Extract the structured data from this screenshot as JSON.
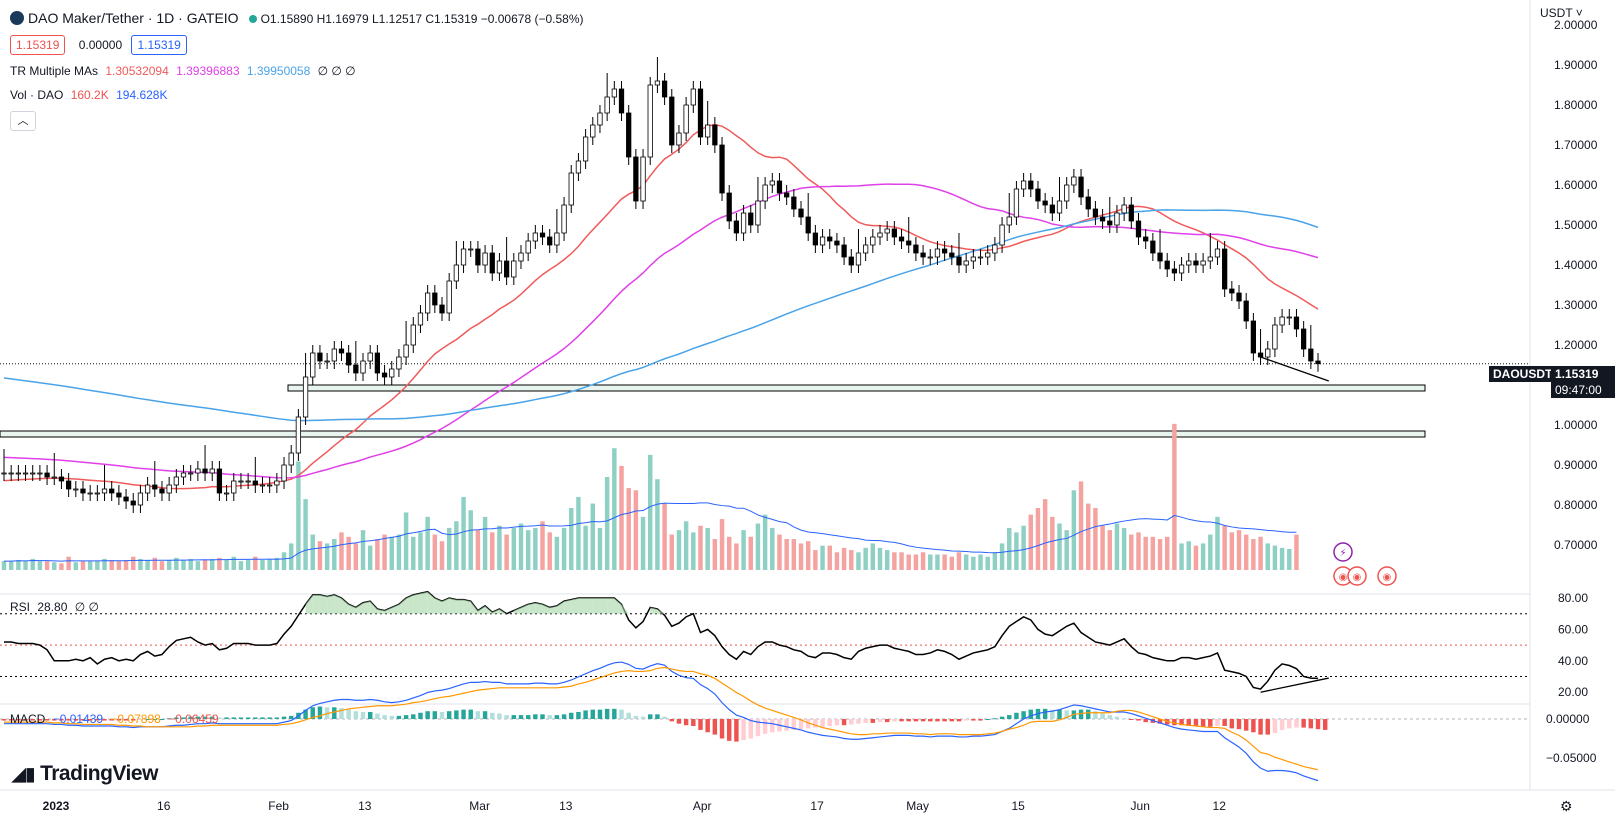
{
  "header": {
    "symbol_title": "DAO Maker/Tether · 1D · GATEIO",
    "ohlc": "O1.15890 H1.16979 L1.12517 C1.15319 −0.00678 (−0.58%)",
    "bid": "1.15319",
    "spread": "0.00000",
    "ask": "1.15319",
    "currency": "USDT",
    "collapse_icon": "chevron-up-icon"
  },
  "indicators": {
    "ma_label": "TR Multiple MAs",
    "ma_values": [
      "1.30532094",
      "1.39396883",
      "1.39950058"
    ],
    "ma_extra": "∅ ∅ ∅",
    "vol_label": "Vol · DAO",
    "vol_values": [
      "160.2K",
      "194.628K"
    ],
    "rsi_label": "RSI",
    "rsi_value": "28.80",
    "rsi_extra": "∅ ∅",
    "macd_label": "MACD",
    "macd_values": [
      "−0.01439",
      "−0.07898",
      "−0.06459"
    ]
  },
  "price_axis": {
    "ticks": [
      "2.00000",
      "1.90000",
      "1.80000",
      "1.70000",
      "1.60000",
      "1.50000",
      "1.40000",
      "1.30000",
      "1.20000",
      "1.10000",
      "1.00000",
      "0.90000",
      "0.80000",
      "0.70000"
    ],
    "current_symbol": "DAOUSDT",
    "current_price": "1.15319",
    "countdown": "09:47:00"
  },
  "rsi_axis": {
    "ticks": [
      "80.00",
      "60.00",
      "40.00",
      "20.00"
    ]
  },
  "macd_axis": {
    "ticks": [
      "0.00000",
      "−0.05000"
    ]
  },
  "time_axis": {
    "ticks": [
      "2023",
      "16",
      "Feb",
      "13",
      "Mar",
      "13",
      "Apr",
      "17",
      "May",
      "15",
      "Jun",
      "12"
    ]
  },
  "branding": {
    "logo_text": "TradingView",
    "settings_icon": "gear-icon"
  },
  "colors": {
    "up": "#ffffff",
    "down": "#000000",
    "ma_red": "#f05a5a",
    "ma_pink": "#e040e8",
    "ma_blue": "#4aa3e8",
    "vol_up": "#8fd0c4",
    "vol_down": "#f4a3a0",
    "rsi_line": "#000000",
    "macd_line": "#2962ff",
    "signal_line": "#ff9800",
    "hist_pos": "#26a69a",
    "hist_neg": "#ef5350"
  },
  "chart_data": [
    {
      "type": "candlestick",
      "title": "DAO Maker/Tether · 1D · GATEIO",
      "x_start": "2023-01-01",
      "ylim": [
        0.65,
        2.0
      ],
      "close": [
        0.88,
        0.88,
        0.88,
        0.88,
        0.88,
        0.88,
        0.87,
        0.87,
        0.86,
        0.84,
        0.84,
        0.83,
        0.83,
        0.83,
        0.84,
        0.83,
        0.82,
        0.81,
        0.8,
        0.83,
        0.85,
        0.84,
        0.83,
        0.85,
        0.87,
        0.88,
        0.88,
        0.89,
        0.88,
        0.89,
        0.83,
        0.83,
        0.86,
        0.86,
        0.86,
        0.85,
        0.85,
        0.85,
        0.86,
        0.9,
        0.93,
        1.02,
        1.12,
        1.18,
        1.16,
        1.16,
        1.19,
        1.18,
        1.15,
        1.13,
        1.16,
        1.18,
        1.13,
        1.12,
        1.14,
        1.17,
        1.2,
        1.25,
        1.28,
        1.33,
        1.3,
        1.28,
        1.36,
        1.4,
        1.44,
        1.44,
        1.4,
        1.43,
        1.38,
        1.41,
        1.37,
        1.41,
        1.43,
        1.46,
        1.48,
        1.47,
        1.45,
        1.48,
        1.55,
        1.63,
        1.66,
        1.72,
        1.75,
        1.78,
        1.82,
        1.84,
        1.78,
        1.67,
        1.56,
        1.67,
        1.85,
        1.86,
        1.82,
        1.7,
        1.73,
        1.8,
        1.84,
        1.72,
        1.75,
        1.7,
        1.58,
        1.51,
        1.48,
        1.53,
        1.5,
        1.56,
        1.6,
        1.61,
        1.58,
        1.57,
        1.54,
        1.52,
        1.48,
        1.45,
        1.47,
        1.46,
        1.45,
        1.42,
        1.4,
        1.43,
        1.45,
        1.47,
        1.48,
        1.49,
        1.47,
        1.46,
        1.45,
        1.43,
        1.42,
        1.42,
        1.44,
        1.43,
        1.42,
        1.4,
        1.41,
        1.42,
        1.42,
        1.43,
        1.45,
        1.5,
        1.52,
        1.59,
        1.61,
        1.59,
        1.56,
        1.55,
        1.53,
        1.56,
        1.6,
        1.62,
        1.57,
        1.54,
        1.52,
        1.51,
        1.5,
        1.53,
        1.55,
        1.51,
        1.47,
        1.46,
        1.43,
        1.41,
        1.39,
        1.38,
        1.4,
        1.41,
        1.4,
        1.41,
        1.42,
        1.44,
        1.34,
        1.33,
        1.31,
        1.26,
        1.18,
        1.17,
        1.19,
        1.25,
        1.27,
        1.27,
        1.24,
        1.19,
        1.16,
        1.15319
      ]
    },
    {
      "type": "line",
      "name": "TR Multiple MAs",
      "series": [
        {
          "name": "MA 1.30532094",
          "color": "#f05a5a"
        },
        {
          "name": "MA 1.39396883",
          "color": "#e040e8"
        },
        {
          "name": "MA 1.39950058",
          "color": "#4aa3e8"
        }
      ]
    },
    {
      "type": "bar",
      "name": "Vol · DAO",
      "values_k": [
        40,
        40,
        45,
        40,
        50,
        40,
        40,
        35,
        30,
        60,
        35,
        40,
        40,
        40,
        50,
        45,
        40,
        45,
        60,
        50,
        45,
        55,
        40,
        45,
        55,
        45,
        50,
        40,
        45,
        50,
        55,
        45,
        60,
        40,
        45,
        60,
        45,
        50,
        55,
        80,
        120,
        490,
        320,
        160,
        130,
        120,
        140,
        170,
        150,
        120,
        180,
        110,
        140,
        160,
        150,
        160,
        260,
        150,
        170,
        240,
        160,
        130,
        190,
        220,
        330,
        270,
        180,
        240,
        170,
        200,
        160,
        190,
        210,
        180,
        190,
        220,
        170,
        150,
        190,
        280,
        330,
        200,
        300,
        190,
        420,
        550,
        470,
        370,
        360,
        240,
        520,
        410,
        300,
        160,
        180,
        220,
        170,
        200,
        190,
        140,
        230,
        150,
        120,
        180,
        150,
        210,
        250,
        190,
        160,
        140,
        140,
        120,
        130,
        90,
        110,
        110,
        80,
        100,
        90,
        80,
        100,
        120,
        100,
        90,
        80,
        80,
        70,
        70,
        80,
        70,
        70,
        70,
        60,
        80,
        70,
        60,
        70,
        60,
        80,
        120,
        190,
        170,
        200,
        250,
        280,
        320,
        240,
        210,
        180,
        360,
        400,
        300,
        280,
        200,
        180,
        210,
        190,
        160,
        170,
        150,
        150,
        140,
        150,
        660,
        120,
        130,
        110,
        120,
        160,
        240,
        200,
        170,
        180,
        160,
        140,
        150,
        120,
        110,
        100,
        95,
        160
      ]
    },
    {
      "type": "line",
      "name": "RSI",
      "ylim": [
        15,
        85
      ],
      "values": [
        52,
        52,
        51,
        51,
        51,
        50,
        47,
        40,
        40,
        40,
        41,
        40,
        42,
        38,
        41,
        42,
        40,
        41,
        40,
        44,
        46,
        43,
        44,
        49,
        53,
        54,
        55,
        52,
        50,
        51,
        47,
        48,
        51,
        51,
        51,
        50,
        50,
        50,
        51,
        57,
        62,
        69,
        76,
        82,
        82,
        81,
        82,
        80,
        76,
        74,
        77,
        78,
        73,
        72,
        74,
        76,
        80,
        82,
        83,
        84,
        80,
        78,
        80,
        79,
        79,
        78,
        72,
        75,
        71,
        73,
        70,
        72,
        74,
        76,
        77,
        76,
        74,
        75,
        78,
        79,
        80,
        80,
        80,
        80,
        80,
        80,
        76,
        66,
        61,
        65,
        74,
        73,
        69,
        62,
        64,
        68,
        70,
        58,
        60,
        56,
        49,
        44,
        41,
        46,
        44,
        49,
        52,
        52,
        50,
        49,
        47,
        46,
        43,
        42,
        45,
        45,
        44,
        42,
        41,
        46,
        48,
        49,
        50,
        50,
        48,
        47,
        46,
        44,
        44,
        45,
        47,
        46,
        44,
        41,
        43,
        45,
        46,
        47,
        49,
        56,
        62,
        65,
        68,
        66,
        60,
        57,
        56,
        59,
        62,
        64,
        58,
        55,
        52,
        51,
        50,
        52,
        54,
        49,
        45,
        44,
        42,
        41,
        40,
        40,
        42,
        42,
        41,
        42,
        43,
        45,
        34,
        33,
        32,
        30,
        23,
        22,
        27,
        34,
        38,
        37,
        35,
        30,
        29,
        28.8
      ]
    },
    {
      "type": "bar",
      "name": "MACD",
      "ylim": [
        -0.08,
        0.02
      ],
      "histogram": [
        -0.002,
        -0.002,
        -0.002,
        -0.002,
        -0.002,
        -0.002,
        -0.002,
        -0.002,
        -0.002,
        -0.002,
        -0.002,
        -0.002,
        -0.002,
        -0.002,
        -0.002,
        -0.002,
        -0.002,
        -0.002,
        -0.002,
        -0.001,
        0.0,
        0.0,
        0.0,
        0.001,
        0.002,
        0.002,
        0.003,
        0.003,
        0.003,
        0.003,
        0.002,
        0.002,
        0.002,
        0.002,
        0.002,
        0.002,
        0.002,
        0.002,
        0.002,
        0.003,
        0.004,
        0.008,
        0.012,
        0.015,
        0.016,
        0.015,
        0.015,
        0.014,
        0.012,
        0.01,
        0.009,
        0.009,
        0.007,
        0.005,
        0.004,
        0.004,
        0.005,
        0.006,
        0.008,
        0.01,
        0.01,
        0.009,
        0.01,
        0.011,
        0.012,
        0.012,
        0.01,
        0.01,
        0.008,
        0.007,
        0.005,
        0.005,
        0.005,
        0.005,
        0.006,
        0.006,
        0.005,
        0.005,
        0.006,
        0.008,
        0.009,
        0.011,
        0.012,
        0.012,
        0.013,
        0.013,
        0.012,
        0.008,
        0.004,
        0.003,
        0.006,
        0.006,
        0.003,
        -0.003,
        -0.006,
        -0.008,
        -0.009,
        -0.014,
        -0.017,
        -0.02,
        -0.025,
        -0.028,
        -0.029,
        -0.027,
        -0.025,
        -0.022,
        -0.019,
        -0.017,
        -0.016,
        -0.015,
        -0.014,
        -0.013,
        -0.012,
        -0.011,
        -0.01,
        -0.009,
        -0.008,
        -0.008,
        -0.007,
        -0.006,
        -0.005,
        -0.005,
        -0.004,
        -0.004,
        -0.003,
        -0.003,
        -0.003,
        -0.003,
        -0.003,
        -0.003,
        -0.003,
        -0.003,
        -0.003,
        -0.003,
        -0.002,
        -0.002,
        -0.002,
        0.0,
        0.001,
        0.003,
        0.005,
        0.008,
        0.01,
        0.012,
        0.013,
        0.013,
        0.012,
        0.012,
        0.011,
        0.011,
        0.012,
        0.012,
        0.01,
        0.007,
        0.005,
        0.003,
        0.001,
        -0.001,
        -0.002,
        -0.004,
        -0.005,
        -0.006,
        -0.007,
        -0.008,
        -0.008,
        -0.009,
        -0.009,
        -0.01,
        -0.01,
        -0.009,
        -0.009,
        -0.012,
        -0.013,
        -0.015,
        -0.017,
        -0.02,
        -0.02,
        -0.018,
        -0.014,
        -0.012,
        -0.011,
        -0.011,
        -0.012,
        -0.013,
        -0.014
      ],
      "macd_line": [
        -0.006,
        -0.006,
        -0.006,
        -0.006,
        -0.006,
        -0.006,
        -0.006,
        -0.007,
        -0.007,
        -0.008,
        -0.008,
        -0.009,
        -0.009,
        -0.009,
        -0.009,
        -0.009,
        -0.01,
        -0.01,
        -0.011,
        -0.01,
        -0.01,
        -0.01,
        -0.01,
        -0.009,
        -0.008,
        -0.008,
        -0.007,
        -0.006,
        -0.006,
        -0.005,
        -0.006,
        -0.006,
        -0.006,
        -0.006,
        -0.006,
        -0.006,
        -0.006,
        -0.006,
        -0.006,
        -0.004,
        -0.002,
        0.004,
        0.011,
        0.017,
        0.02,
        0.022,
        0.024,
        0.025,
        0.025,
        0.024,
        0.024,
        0.025,
        0.024,
        0.022,
        0.021,
        0.022,
        0.024,
        0.027,
        0.03,
        0.034,
        0.036,
        0.037,
        0.039,
        0.042,
        0.045,
        0.047,
        0.047,
        0.048,
        0.047,
        0.047,
        0.045,
        0.045,
        0.045,
        0.045,
        0.046,
        0.046,
        0.045,
        0.045,
        0.047,
        0.05,
        0.054,
        0.058,
        0.062,
        0.065,
        0.069,
        0.072,
        0.073,
        0.07,
        0.065,
        0.064,
        0.068,
        0.071,
        0.069,
        0.061,
        0.056,
        0.053,
        0.052,
        0.044,
        0.039,
        0.032,
        0.021,
        0.012,
        0.005,
        0.002,
        -0.002,
        -0.004,
        -0.005,
        -0.006,
        -0.008,
        -0.01,
        -0.012,
        -0.014,
        -0.017,
        -0.019,
        -0.021,
        -0.022,
        -0.023,
        -0.025,
        -0.026,
        -0.026,
        -0.025,
        -0.024,
        -0.023,
        -0.022,
        -0.021,
        -0.021,
        -0.021,
        -0.022,
        -0.022,
        -0.023,
        -0.022,
        -0.022,
        -0.022,
        -0.023,
        -0.023,
        -0.022,
        -0.022,
        -0.021,
        -0.02,
        -0.016,
        -0.012,
        -0.006,
        0.0,
        0.004,
        0.007,
        0.009,
        0.01,
        0.012,
        0.015,
        0.018,
        0.017,
        0.015,
        0.013,
        0.011,
        0.009,
        0.009,
        0.009,
        0.007,
        0.004,
        0.001,
        -0.002,
        -0.005,
        -0.008,
        -0.011,
        -0.013,
        -0.014,
        -0.015,
        -0.016,
        -0.016,
        -0.016,
        -0.024,
        -0.03,
        -0.036,
        -0.044,
        -0.055,
        -0.063,
        -0.067,
        -0.066,
        -0.066,
        -0.067,
        -0.069,
        -0.073,
        -0.076,
        -0.079
      ],
      "signal_line": [
        -0.004,
        -0.004,
        -0.004,
        -0.004,
        -0.004,
        -0.004,
        -0.004,
        -0.005,
        -0.005,
        -0.006,
        -0.006,
        -0.007,
        -0.007,
        -0.007,
        -0.007,
        -0.007,
        -0.008,
        -0.008,
        -0.009,
        -0.009,
        -0.01,
        -0.01,
        -0.01,
        -0.01,
        -0.01,
        -0.01,
        -0.01,
        -0.009,
        -0.009,
        -0.008,
        -0.008,
        -0.008,
        -0.008,
        -0.008,
        -0.008,
        -0.008,
        -0.008,
        -0.008,
        -0.008,
        -0.007,
        -0.006,
        -0.004,
        -0.001,
        0.002,
        0.004,
        0.007,
        0.009,
        0.011,
        0.013,
        0.014,
        0.015,
        0.016,
        0.017,
        0.017,
        0.017,
        0.018,
        0.019,
        0.021,
        0.022,
        0.024,
        0.026,
        0.028,
        0.029,
        0.031,
        0.033,
        0.035,
        0.037,
        0.038,
        0.039,
        0.04,
        0.04,
        0.04,
        0.04,
        0.04,
        0.04,
        0.04,
        0.04,
        0.04,
        0.041,
        0.042,
        0.045,
        0.047,
        0.05,
        0.053,
        0.056,
        0.059,
        0.061,
        0.062,
        0.061,
        0.061,
        0.062,
        0.065,
        0.066,
        0.064,
        0.062,
        0.061,
        0.061,
        0.058,
        0.056,
        0.052,
        0.046,
        0.04,
        0.034,
        0.029,
        0.023,
        0.018,
        0.014,
        0.011,
        0.008,
        0.005,
        0.002,
        -0.001,
        -0.005,
        -0.008,
        -0.011,
        -0.013,
        -0.015,
        -0.017,
        -0.019,
        -0.02,
        -0.02,
        -0.019,
        -0.019,
        -0.018,
        -0.018,
        -0.018,
        -0.018,
        -0.019,
        -0.019,
        -0.02,
        -0.019,
        -0.019,
        -0.019,
        -0.02,
        -0.02,
        -0.02,
        -0.02,
        -0.019,
        -0.018,
        -0.016,
        -0.013,
        -0.011,
        -0.008,
        -0.004,
        -0.003,
        -0.003,
        -0.003,
        -0.001,
        0.002,
        0.006,
        0.007,
        0.008,
        0.008,
        0.008,
        0.008,
        0.01,
        0.011,
        0.011,
        0.009,
        0.006,
        0.003,
        0.0,
        -0.003,
        -0.005,
        -0.007,
        -0.008,
        -0.009,
        -0.01,
        -0.011,
        -0.011,
        -0.012,
        -0.017,
        -0.021,
        -0.027,
        -0.035,
        -0.043,
        -0.045,
        -0.049,
        -0.052,
        -0.055,
        -0.058,
        -0.061,
        -0.063,
        -0.065
      ]
    }
  ]
}
